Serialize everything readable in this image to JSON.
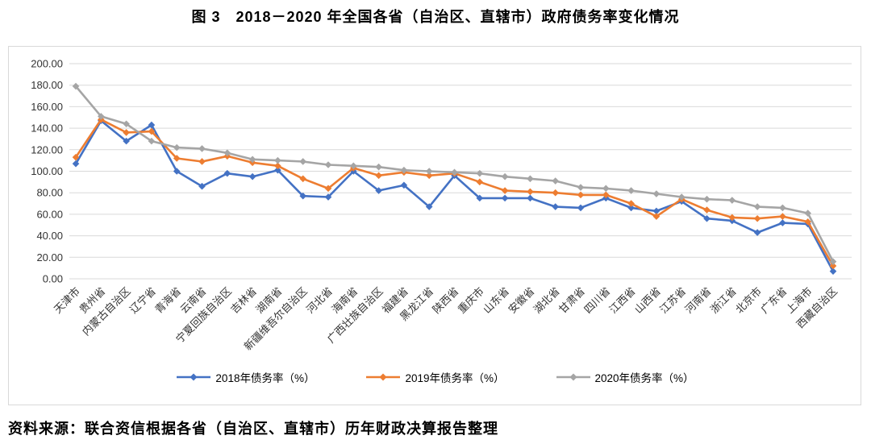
{
  "page": {
    "title": "图 3　2018－2020 年全国各省（自治区、直辖市）政府债务率变化情况",
    "source_note": "资料来源：联合资信根据各省（自治区、直辖市）历年财政决算报告整理"
  },
  "colors": {
    "series_2018": "#4472C4",
    "series_2019": "#ED7D31",
    "series_2020": "#A5A5A5",
    "gridline": "#D9D9D9",
    "panel_border": "#D9D9D9",
    "axis_text": "#333333"
  },
  "chart_data": {
    "type": "line",
    "title": "图 3　2018－2020 年全国各省（自治区、直辖市）政府债务率变化情况",
    "xlabel": "",
    "ylabel": "",
    "ylim": [
      0,
      200
    ],
    "ytick_step": 20,
    "ytick_labels": [
      "0.00",
      "20.00",
      "40.00",
      "60.00",
      "80.00",
      "100.00",
      "120.00",
      "140.00",
      "160.00",
      "180.00",
      "200.00"
    ],
    "grid": true,
    "legend_position": "bottom",
    "marker": "diamond",
    "categories": [
      "天津市",
      "贵州省",
      "内蒙古自治区",
      "辽宁省",
      "青海省",
      "云南省",
      "宁夏回族自治区",
      "吉林省",
      "湖南省",
      "新疆维吾尔自治区",
      "河北省",
      "海南省",
      "广西壮族自治区",
      "福建省",
      "黑龙江省",
      "陕西省",
      "重庆市",
      "山东省",
      "安徽省",
      "湖北省",
      "甘肃省",
      "四川省",
      "江西省",
      "山西省",
      "江苏省",
      "河南省",
      "浙江省",
      "北京市",
      "广东省",
      "上海市",
      "西藏自治区"
    ],
    "series": [
      {
        "name": "2018年债务率（%）",
        "color": "#4472C4",
        "values": [
          107,
          147,
          128,
          143,
          100,
          86,
          98,
          95,
          101,
          77,
          76,
          100,
          82,
          87,
          67,
          96,
          75,
          75,
          75,
          67,
          66,
          75,
          66,
          63,
          72,
          56,
          54,
          43,
          52,
          51,
          7
        ]
      },
      {
        "name": "2019年债务率（%）",
        "color": "#ED7D31",
        "values": [
          113,
          148,
          136,
          137,
          112,
          109,
          114,
          108,
          105,
          93,
          84,
          103,
          96,
          99,
          96,
          98,
          90,
          82,
          81,
          80,
          78,
          78,
          70,
          58,
          74,
          64,
          57,
          56,
          58,
          53,
          12
        ]
      },
      {
        "name": "2020年债务率（%）",
        "color": "#A5A5A5",
        "values": [
          179,
          151,
          144,
          128,
          122,
          121,
          117,
          111,
          110,
          109,
          106,
          105,
          104,
          101,
          100,
          99,
          98,
          95,
          93,
          91,
          85,
          84,
          82,
          79,
          76,
          74,
          73,
          67,
          66,
          61,
          16
        ]
      }
    ]
  }
}
